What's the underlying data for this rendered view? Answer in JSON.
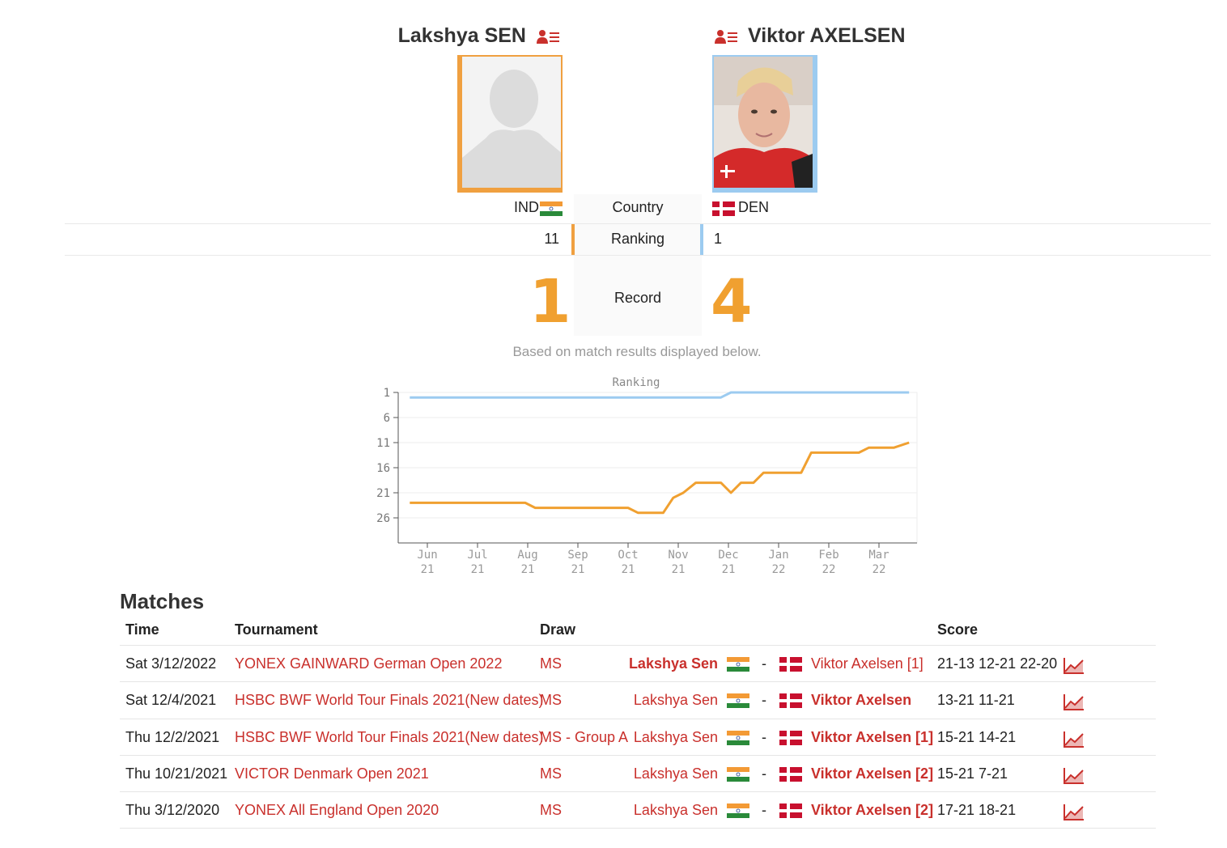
{
  "players": {
    "left": {
      "name": "Lakshya SEN",
      "country": "IND",
      "ranking": "11",
      "record": "1",
      "photo_icon": "silhouette-placeholder-icon",
      "color": "#f0a040"
    },
    "right": {
      "name": "Viktor AXELSEN",
      "country": "DEN",
      "ranking": "1",
      "record": "4",
      "photo_icon": "player-photo",
      "color": "#9ccbf0"
    }
  },
  "compare": {
    "country_label": "Country",
    "ranking_label": "Ranking",
    "record_label": "Record",
    "note": "Based on match results displayed below."
  },
  "chart_data": {
    "type": "line",
    "title": "Ranking",
    "x": [
      "Jun 21",
      "Jul 21",
      "Aug 21",
      "Sep 21",
      "Oct 21",
      "Nov 21",
      "Dec 21",
      "Jan 22",
      "Feb 22",
      "Mar 22"
    ],
    "y_ticks": [
      "1",
      "6",
      "11",
      "16",
      "21",
      "26"
    ],
    "ylim": [
      1,
      31
    ],
    "y_reversed": true,
    "series": [
      {
        "name": "Viktor Axelsen",
        "color": "#9ccbf0",
        "points": [
          [
            -0.35,
            2
          ],
          [
            0,
            2
          ],
          [
            1,
            2
          ],
          [
            2,
            2
          ],
          [
            3,
            2
          ],
          [
            4,
            2
          ],
          [
            5,
            2
          ],
          [
            5.85,
            2
          ],
          [
            6.05,
            1
          ],
          [
            7,
            1
          ],
          [
            8,
            1
          ],
          [
            9,
            1
          ],
          [
            9.6,
            1
          ]
        ]
      },
      {
        "name": "Lakshya Sen",
        "color": "#f0a030",
        "points": [
          [
            -0.35,
            23
          ],
          [
            0,
            23
          ],
          [
            1,
            23
          ],
          [
            1.95,
            23
          ],
          [
            2.15,
            24
          ],
          [
            3,
            24
          ],
          [
            4,
            24
          ],
          [
            4.2,
            25
          ],
          [
            4.7,
            25
          ],
          [
            4.9,
            22
          ],
          [
            5.1,
            21
          ],
          [
            5.35,
            19
          ],
          [
            5.85,
            19
          ],
          [
            6.05,
            21
          ],
          [
            6.25,
            19
          ],
          [
            6.5,
            19
          ],
          [
            6.7,
            17
          ],
          [
            7,
            17
          ],
          [
            7.45,
            17
          ],
          [
            7.65,
            13
          ],
          [
            8,
            13
          ],
          [
            8.6,
            13
          ],
          [
            8.8,
            12
          ],
          [
            9.3,
            12
          ],
          [
            9.6,
            11
          ]
        ]
      }
    ]
  },
  "matches": {
    "title": "Matches",
    "headers": {
      "time": "Time",
      "tournament": "Tournament",
      "draw": "Draw",
      "score": "Score"
    },
    "rows": [
      {
        "time": "Sat 3/12/2022",
        "tournament": "YONEX GAINWARD German Open 2022",
        "draw": "MS",
        "player1": "Lakshya Sen",
        "player2": "Viktor Axelsen [1]",
        "winner": 1,
        "score": "21-13 12-21 22-20"
      },
      {
        "time": "Sat 12/4/2021",
        "tournament": "HSBC BWF World Tour Finals 2021(New dates)",
        "draw": "MS",
        "player1": "Lakshya Sen",
        "player2": "Viktor Axelsen",
        "winner": 2,
        "score": "13-21 11-21"
      },
      {
        "time": "Thu 12/2/2021",
        "tournament": "HSBC BWF World Tour Finals 2021(New dates)",
        "draw": "MS - Group A",
        "player1": "Lakshya Sen",
        "player2": "Viktor Axelsen [1]",
        "winner": 2,
        "score": "15-21 14-21"
      },
      {
        "time": "Thu 10/21/2021",
        "tournament": "VICTOR Denmark Open 2021",
        "draw": "MS",
        "player1": "Lakshya Sen",
        "player2": "Viktor Axelsen [2]",
        "winner": 2,
        "score": "15-21 7-21"
      },
      {
        "time": "Thu 3/12/2020",
        "tournament": "YONEX All England Open 2020",
        "draw": "MS",
        "player1": "Lakshya Sen",
        "player2": "Viktor Axelsen [2]",
        "winner": 2,
        "score": "17-21 18-21"
      }
    ],
    "separator": "-"
  },
  "icons": {
    "profile": "player-profile-icon",
    "stats": "match-stats-chart-icon",
    "flag_ind": "flag-india-icon",
    "flag_den": "flag-denmark-icon"
  },
  "colors": {
    "link": "#c9302c",
    "accent_left": "#f0a040",
    "accent_right": "#9ccbf0"
  }
}
